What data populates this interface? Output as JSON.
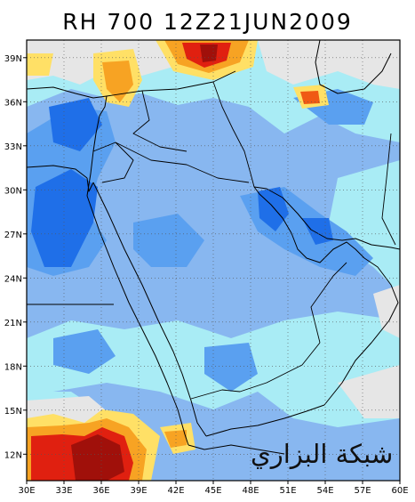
{
  "title": "RH 700  12Z21JUN2009",
  "lat_labels": [
    "39N",
    "36N",
    "33N",
    "30N",
    "27N",
    "24N",
    "21N",
    "18N",
    "15N",
    "12N"
  ],
  "lon_labels": [
    "30E",
    "33E",
    "36E",
    "39E",
    "42E",
    "45E",
    "48E",
    "51E",
    "54E",
    "57E",
    "60E"
  ],
  "lat_values": [
    39,
    36,
    33,
    30,
    27,
    24,
    21,
    18,
    15,
    12
  ],
  "lon_values": [
    30,
    33,
    36,
    39,
    42,
    45,
    48,
    51,
    54,
    57,
    60
  ],
  "map_extent": {
    "lon_min": 30,
    "lon_max": 60,
    "lat_min": 10.2,
    "lat_max": 40.2
  },
  "watermark": "شبكة البزاري",
  "colors": {
    "dark_blue": "#1f6fe8",
    "blue": "#5aa0f0",
    "medium_blue": "#88b7f0",
    "light_cyan": "#a9ecf5",
    "gray": "#e6e6e6",
    "yellow": "#ffe066",
    "orange": "#f7a323",
    "red_orange": "#f05a14",
    "red": "#e02010",
    "dark_red": "#a0100a"
  }
}
